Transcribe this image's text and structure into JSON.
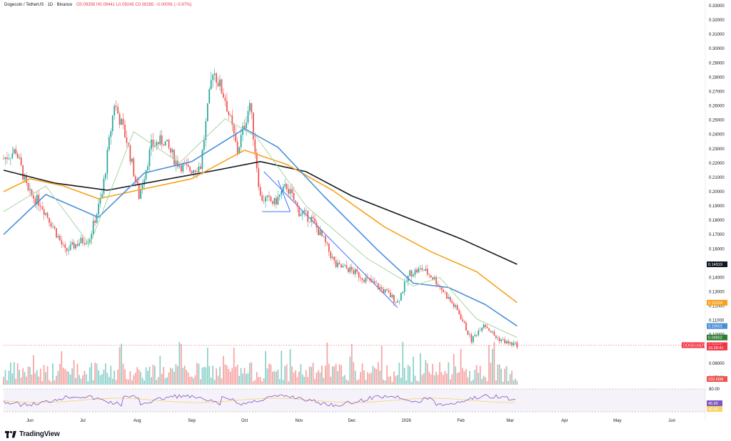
{
  "header": {
    "symbol_line": "Dogecoin / TetherUS · 1D · Binance",
    "ohlc": "O0.09356 H0.09441 L0.09245 C0.09265 −0.00091 (−0.97%)"
  },
  "branding": {
    "logo_text": "TradingView"
  },
  "colors": {
    "up": "#26a69a",
    "down": "#ef5350",
    "ma_black": "#131722",
    "ma_orange": "#f7a21b",
    "ma_blue": "#4a90d9",
    "ma_green": "#9fd09a",
    "rsi": "#7e57c2",
    "rsi_ma": "#f7d36b"
  },
  "chart_data": {
    "type": "candlestick",
    "title": "Dogecoin / TetherUS · 1D · Binance",
    "y_axis_ticks": [
      "0.33000",
      "0.32000",
      "0.31000",
      "0.30000",
      "0.29000",
      "0.28000",
      "0.27000",
      "0.26000",
      "0.25000",
      "0.24000",
      "0.23000",
      "0.22000",
      "0.21000",
      "0.20000",
      "0.19000",
      "0.18000",
      "0.17000",
      "0.16000",
      "0.15000",
      "0.14000",
      "0.13000",
      "0.12000",
      "0.11000",
      "0.10000",
      "0.09000",
      "0.08000",
      "0.07000"
    ],
    "x_axis_ticks": [
      "Jun",
      "Jul",
      "Aug",
      "Sep",
      "Oct",
      "Nov",
      "Dec",
      "2026",
      "Feb",
      "Mar",
      "Apr",
      "May",
      "Jun"
    ],
    "price_badges": [
      {
        "label": "0.14919",
        "value": 0.14919,
        "color": "#131722"
      },
      {
        "label": "0.12234",
        "value": 0.12234,
        "color": "#f7a21b"
      },
      {
        "label": "0.10601",
        "value": 0.10601,
        "color": "#4a90d9"
      },
      {
        "label": "0.09802",
        "value": 0.09802,
        "color": "#2e7d32"
      },
      {
        "label": "DOGEUSDT",
        "value": 0.09265,
        "color": "#f23645"
      },
      {
        "label": "0.09265",
        "value": 0.09265,
        "color": "#f23645"
      },
      {
        "label": "16:28:41",
        "value": 0.091,
        "color": "#f23645"
      }
    ],
    "volume_badge": "232.66M",
    "rsi": {
      "levels": [
        "80.00"
      ],
      "value_labels": [
        "45.95",
        "42.42"
      ]
    },
    "price_path": [
      [
        "2025-05-17",
        0.223
      ],
      [
        "2025-05-24",
        0.229
      ],
      [
        "2025-05-31",
        0.199
      ],
      [
        "2025-06-07",
        0.192
      ],
      [
        "2025-06-14",
        0.176
      ],
      [
        "2025-06-21",
        0.158
      ],
      [
        "2025-06-28",
        0.164
      ],
      [
        "2025-07-05",
        0.168
      ],
      [
        "2025-07-12",
        0.198
      ],
      [
        "2025-07-19",
        0.262
      ],
      [
        "2025-07-26",
        0.236
      ],
      [
        "2025-08-02",
        0.197
      ],
      [
        "2025-08-09",
        0.232
      ],
      [
        "2025-08-16",
        0.236
      ],
      [
        "2025-08-23",
        0.221
      ],
      [
        "2025-08-30",
        0.215
      ],
      [
        "2025-09-06",
        0.218
      ],
      [
        "2025-09-13",
        0.286
      ],
      [
        "2025-09-20",
        0.265
      ],
      [
        "2025-09-27",
        0.228
      ],
      [
        "2025-10-04",
        0.262
      ],
      [
        "2025-10-10",
        0.196
      ],
      [
        "2025-10-18",
        0.192
      ],
      [
        "2025-10-25",
        0.204
      ],
      [
        "2025-11-01",
        0.186
      ],
      [
        "2025-11-08",
        0.181
      ],
      [
        "2025-11-15",
        0.166
      ],
      [
        "2025-11-22",
        0.148
      ],
      [
        "2025-11-29",
        0.146
      ],
      [
        "2025-12-06",
        0.141
      ],
      [
        "2025-12-13",
        0.136
      ],
      [
        "2025-12-20",
        0.13
      ],
      [
        "2025-12-27",
        0.123
      ],
      [
        "2026-01-03",
        0.143
      ],
      [
        "2026-01-10",
        0.146
      ],
      [
        "2026-01-17",
        0.139
      ],
      [
        "2026-01-24",
        0.127
      ],
      [
        "2026-01-31",
        0.115
      ],
      [
        "2026-02-07",
        0.096
      ],
      [
        "2026-02-14",
        0.108
      ],
      [
        "2026-02-21",
        0.098
      ],
      [
        "2026-02-28",
        0.094
      ],
      [
        "2026-03-05",
        0.0927
      ]
    ],
    "moving_averages": [
      {
        "color": "#131722",
        "points": [
          [
            "2025-05-17",
            0.215
          ],
          [
            "2025-06-15",
            0.206
          ],
          [
            "2025-07-15",
            0.201
          ],
          [
            "2025-08-15",
            0.208
          ],
          [
            "2025-09-15",
            0.215
          ],
          [
            "2025-10-10",
            0.221
          ],
          [
            "2025-11-05",
            0.214
          ],
          [
            "2025-12-01",
            0.197
          ],
          [
            "2026-01-01",
            0.182
          ],
          [
            "2026-02-01",
            0.167
          ],
          [
            "2026-03-05",
            0.14919
          ]
        ]
      },
      {
        "color": "#f7a21b",
        "points": [
          [
            "2025-05-17",
            0.2
          ],
          [
            "2025-06-01",
            0.209
          ],
          [
            "2025-06-20",
            0.204
          ],
          [
            "2025-07-10",
            0.195
          ],
          [
            "2025-08-05",
            0.202
          ],
          [
            "2025-09-01",
            0.209
          ],
          [
            "2025-10-01",
            0.229
          ],
          [
            "2025-10-25",
            0.219
          ],
          [
            "2025-11-20",
            0.201
          ],
          [
            "2025-12-20",
            0.175
          ],
          [
            "2026-01-15",
            0.158
          ],
          [
            "2026-02-10",
            0.144
          ],
          [
            "2026-03-05",
            0.12234
          ]
        ]
      },
      {
        "color": "#4a90d9",
        "points": [
          [
            "2025-05-17",
            0.17
          ],
          [
            "2025-06-10",
            0.198
          ],
          [
            "2025-07-10",
            0.182
          ],
          [
            "2025-08-05",
            0.213
          ],
          [
            "2025-09-01",
            0.221
          ],
          [
            "2025-10-01",
            0.244
          ],
          [
            "2025-10-20",
            0.231
          ],
          [
            "2025-11-15",
            0.197
          ],
          [
            "2025-12-15",
            0.16
          ],
          [
            "2026-01-05",
            0.136
          ],
          [
            "2026-01-25",
            0.133
          ],
          [
            "2026-02-15",
            0.121
          ],
          [
            "2026-03-05",
            0.10601
          ]
        ]
      },
      {
        "color": "#9fd09a",
        "points": [
          [
            "2025-05-17",
            0.186
          ],
          [
            "2025-06-10",
            0.204
          ],
          [
            "2025-07-05",
            0.163
          ],
          [
            "2025-07-30",
            0.242
          ],
          [
            "2025-08-25",
            0.22
          ],
          [
            "2025-09-20",
            0.251
          ],
          [
            "2025-10-08",
            0.238
          ],
          [
            "2025-11-05",
            0.19
          ],
          [
            "2025-12-10",
            0.153
          ],
          [
            "2026-01-05",
            0.134
          ],
          [
            "2026-01-20",
            0.14
          ],
          [
            "2026-02-10",
            0.111
          ],
          [
            "2026-03-05",
            0.09802
          ]
        ]
      }
    ],
    "trendlines": [
      {
        "from": [
          "2025-10-12",
          0.214
        ],
        "to": [
          "2025-12-27",
          0.119
        ]
      },
      {
        "from": [
          "2025-10-11",
          0.186
        ],
        "to": [
          "2025-10-27",
          0.186
        ]
      },
      {
        "from": [
          "2025-10-27",
          0.186
        ],
        "to": [
          "2025-10-20",
          0.208
        ]
      }
    ],
    "x_domain": [
      "2025-05-17",
      "2026-06-20"
    ]
  }
}
